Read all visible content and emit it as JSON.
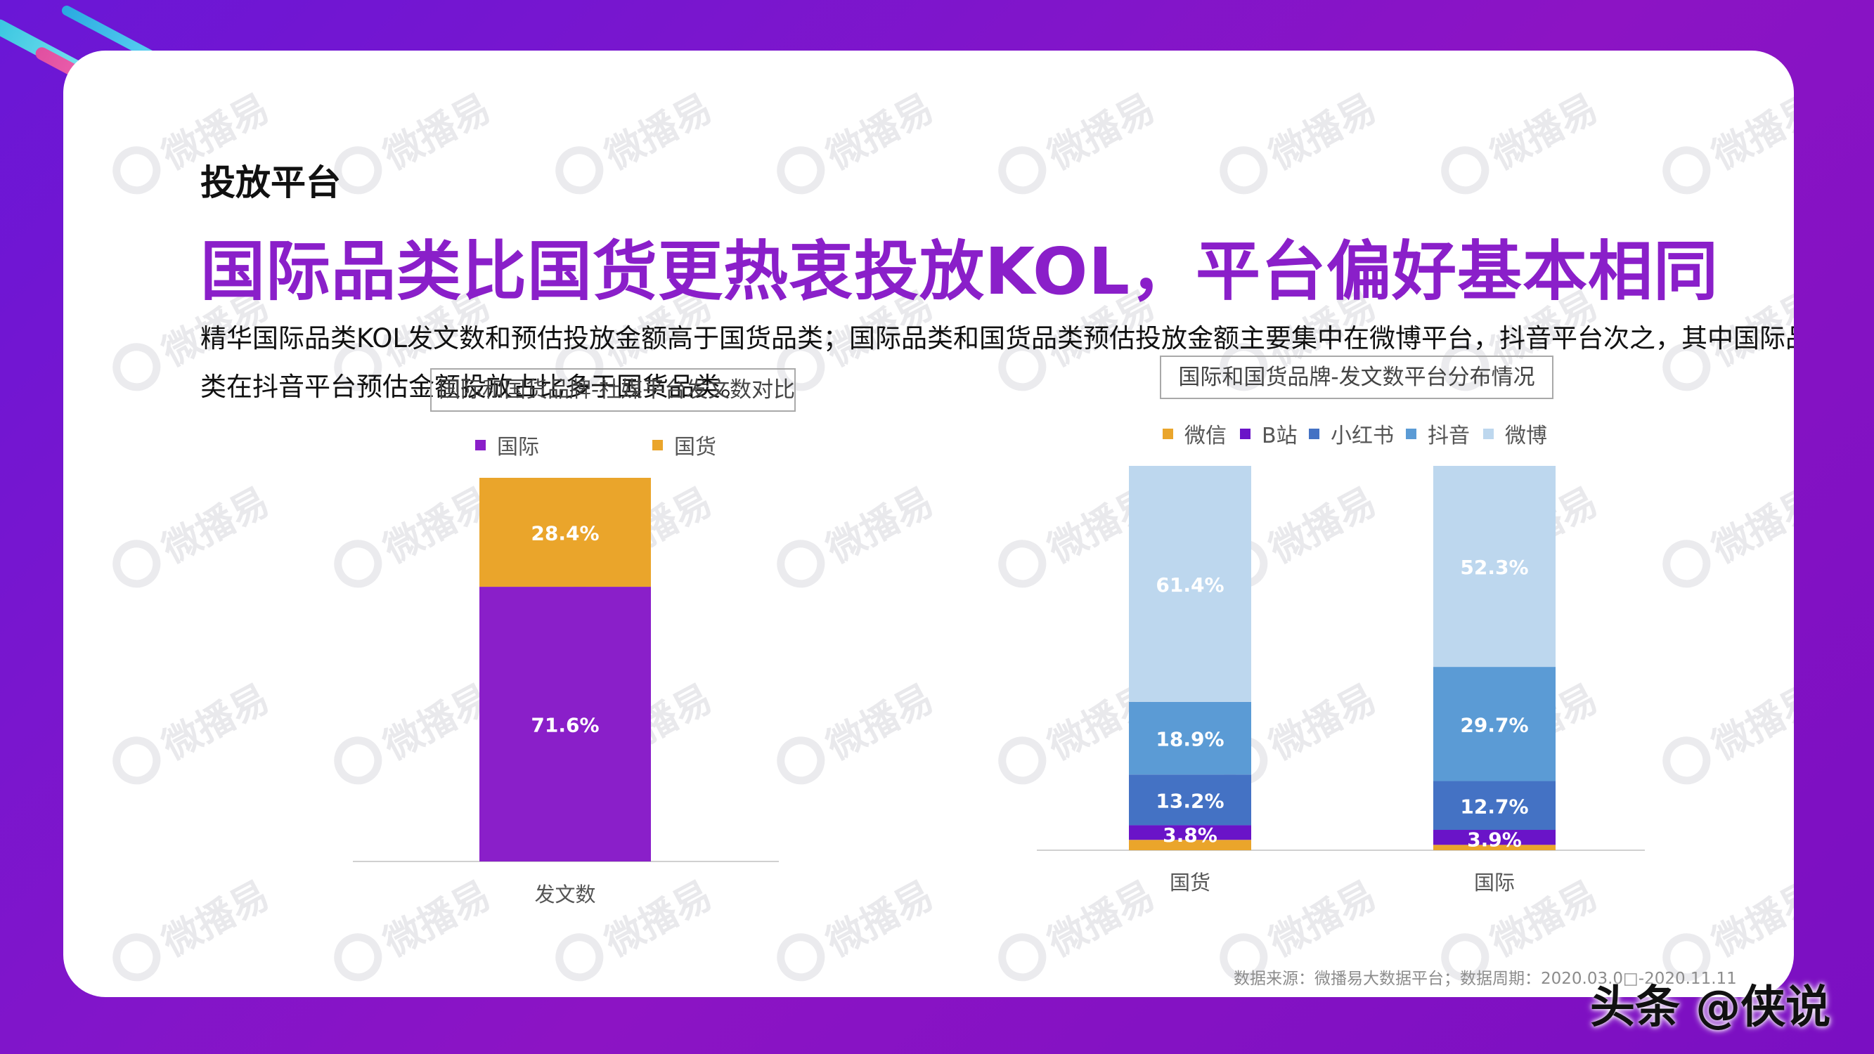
{
  "section_title": "投放平台",
  "headline": "国际品类比国货更热衷投放KOL，平台偏好基本相同",
  "description": "精华国际品类KOL发文数和预估投放金额高于国货品类；国际品类和国货品类预估投放金额主要集中在微博平台，抖音平台次之，其中国际品类在抖音平台预估金额投放占比多于国货品类。",
  "watermark_text": "微播易",
  "source_note": "数据来源：微播易大数据平台；数据周期：2020.03.0□-2020.11.11",
  "toutiao_mark": "头条 @侠说",
  "colors": {
    "purple": "#8a1fc9",
    "orange": "#eaa52b",
    "weixin": "#eaa52b",
    "bzhan": "#6a14c8",
    "xiaohongshu": "#4472c4",
    "douyin": "#5b9bd5",
    "weibo": "#bdd7ee"
  },
  "chart_data": [
    {
      "type": "bar",
      "stacked": true,
      "title": "国际和国货品牌-社媒平台发文数对比",
      "categories": [
        "发文数"
      ],
      "series": [
        {
          "name": "国际",
          "values": [
            71.6
          ],
          "labels": [
            "71.6%"
          ],
          "color": "#8a1fc9"
        },
        {
          "name": "国货",
          "values": [
            28.4
          ],
          "labels": [
            "28.4%"
          ],
          "color": "#eaa52b"
        }
      ],
      "ylim": [
        0,
        100
      ],
      "legend": "top"
    },
    {
      "type": "bar",
      "stacked": true,
      "title": "国际和国货品牌-发文数平台分布情况",
      "categories": [
        "国货",
        "国际"
      ],
      "series": [
        {
          "name": "微信",
          "values": [
            2.7,
            1.4
          ],
          "labels": [
            "",
            ""
          ],
          "color": "#eaa52b"
        },
        {
          "name": "B站",
          "values": [
            3.8,
            3.9
          ],
          "labels": [
            "3.8%",
            "3.9%"
          ],
          "color": "#6a14c8"
        },
        {
          "name": "小红书",
          "values": [
            13.2,
            12.7
          ],
          "labels": [
            "13.2%",
            "12.7%"
          ],
          "color": "#4472c4"
        },
        {
          "name": "抖音",
          "values": [
            18.9,
            29.7
          ],
          "labels": [
            "18.9%",
            "29.7%"
          ],
          "color": "#5b9bd5"
        },
        {
          "name": "微博",
          "values": [
            61.4,
            52.3
          ],
          "labels": [
            "61.4%",
            "52.3%"
          ],
          "color": "#bdd7ee"
        }
      ],
      "ylim": [
        0,
        100
      ],
      "legend": "top"
    }
  ]
}
